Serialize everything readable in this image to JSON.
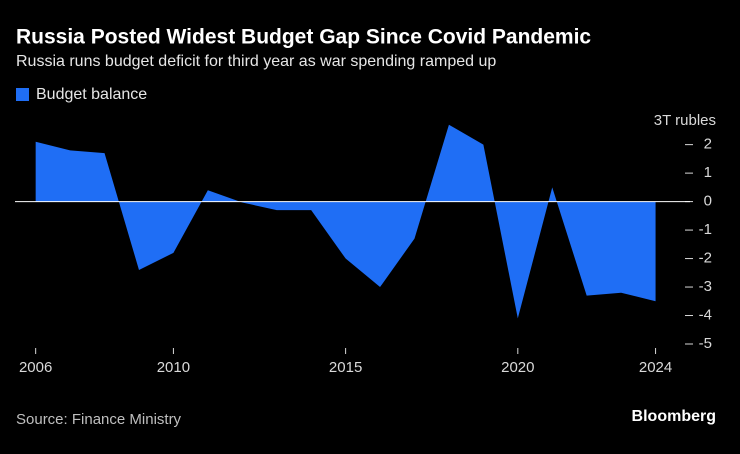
{
  "chart_data": {
    "type": "area",
    "title": "Russia Posted Widest Budget Gap Since Covid Pandemic",
    "subtitle": "Russia runs budget deficit for third year as war spending ramped up",
    "y_unit_label": "3T rubles",
    "source": "Source: Finance Ministry",
    "brand": "Bloomberg",
    "x": [
      2006,
      2007,
      2008,
      2009,
      2010,
      2011,
      2012,
      2013,
      2014,
      2015,
      2016,
      2017,
      2018,
      2019,
      2020,
      2021,
      2022,
      2023,
      2024
    ],
    "series": [
      {
        "name": "Budget balance",
        "color": "#1f6ef5",
        "values": [
          2.1,
          1.8,
          1.7,
          -2.4,
          -1.8,
          0.4,
          -0.03,
          -0.3,
          -0.3,
          -2.0,
          -3.0,
          -1.3,
          2.7,
          2.0,
          -4.1,
          0.5,
          -3.3,
          -3.2,
          -3.5
        ]
      }
    ],
    "xlim": [
      2005.4,
      2025
    ],
    "xticks": [
      2006,
      2010,
      2015,
      2020,
      2024
    ],
    "ylim": [
      -5,
      2.9
    ],
    "yticks": [
      -5,
      -4,
      -3,
      -2,
      -1,
      0,
      1,
      2
    ],
    "y_axis_side": "right",
    "legend": "top-left"
  }
}
